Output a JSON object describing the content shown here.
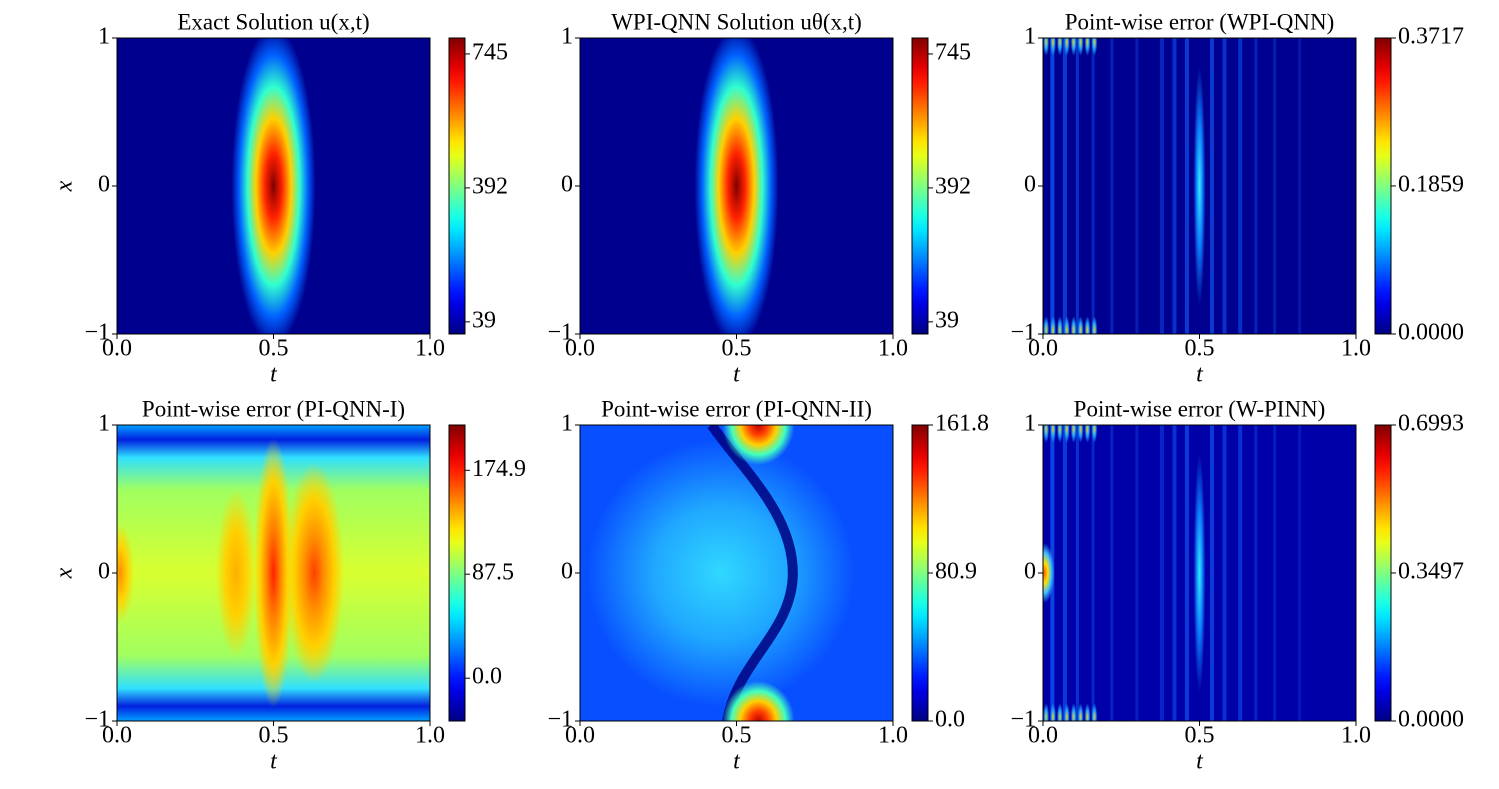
{
  "chart_data": [
    {
      "type": "heatmap",
      "title": "Exact Solution u(x,t)",
      "xlabel": "t",
      "ylabel": "x",
      "xlim": [
        0,
        1
      ],
      "xticks": [
        {
          "value": 0,
          "label": "0.0"
        },
        0.5,
        {
          "value": 1,
          "label": "1.0"
        }
      ],
      "ylim": [
        -1,
        1
      ],
      "yticks": [
        {
          "value": -1,
          "label": "−1"
        },
        0,
        1
      ],
      "colormap": "jet",
      "clim": [
        7,
        787
      ],
      "cticks": [
        39,
        392,
        745
      ]
    },
    {
      "type": "heatmap",
      "title": "WPI-QNN Solution uθ(x,t)",
      "xlabel": "t",
      "xlim": [
        0,
        1
      ],
      "xticks": [
        {
          "value": 0,
          "label": "0.0"
        },
        0.5,
        {
          "value": 1,
          "label": "1.0"
        }
      ],
      "ylim": [
        -1,
        1
      ],
      "yticks": [
        {
          "value": -1,
          "label": "−1"
        },
        0,
        1
      ],
      "colormap": "jet",
      "clim": [
        7,
        787
      ],
      "cticks": [
        39,
        392,
        745
      ]
    },
    {
      "type": "heatmap",
      "title": "Point-wise error (WPI-QNN)",
      "xlabel": "t",
      "xlim": [
        0,
        1
      ],
      "xticks": [
        {
          "value": 0,
          "label": "0.0"
        },
        0.5,
        {
          "value": 1,
          "label": "1.0"
        }
      ],
      "ylim": [
        -1,
        1
      ],
      "yticks": [
        {
          "value": -1,
          "label": "−1"
        },
        0,
        1
      ],
      "colormap": "jet",
      "clim": [
        0,
        0.3717
      ],
      "cticks": [
        {
          "value": 0,
          "label": "0.0000"
        },
        0.1859,
        0.3717
      ]
    },
    {
      "type": "heatmap",
      "title": "Point-wise error (PI-QNN-I)",
      "xlabel": "t",
      "ylabel": "x",
      "xlim": [
        0,
        1
      ],
      "xticks": [
        {
          "value": 0,
          "label": "0.0"
        },
        0.5,
        {
          "value": 1,
          "label": "1.0"
        }
      ],
      "ylim": [
        -1,
        1
      ],
      "yticks": [
        {
          "value": -1,
          "label": "−1"
        },
        0,
        1
      ],
      "colormap": "jet",
      "clim": [
        -36,
        213
      ],
      "cticks": [
        {
          "value": 0,
          "label": "0.0"
        },
        87.5,
        174.9
      ]
    },
    {
      "type": "heatmap",
      "title": "Point-wise error (PI-QNN-II)",
      "xlabel": "t",
      "xlim": [
        0,
        1
      ],
      "xticks": [
        {
          "value": 0,
          "label": "0.0"
        },
        0.5,
        {
          "value": 1,
          "label": "1.0"
        }
      ],
      "ylim": [
        -1,
        1
      ],
      "yticks": [
        {
          "value": -1,
          "label": "−1"
        },
        0,
        1
      ],
      "colormap": "jet",
      "clim": [
        0,
        161.8
      ],
      "cticks": [
        {
          "value": 0,
          "label": "0.0"
        },
        80.9,
        161.8
      ]
    },
    {
      "type": "heatmap",
      "title": "Point-wise error (W-PINN)",
      "xlabel": "t",
      "xlim": [
        0,
        1
      ],
      "xticks": [
        {
          "value": 0,
          "label": "0.0"
        },
        0.5,
        {
          "value": 1,
          "label": "1.0"
        }
      ],
      "ylim": [
        -1,
        1
      ],
      "yticks": [
        {
          "value": -1,
          "label": "−1"
        },
        0,
        1
      ],
      "colormap": "jet",
      "clim": [
        0,
        0.6993
      ],
      "cticks": [
        {
          "value": 0,
          "label": "0.0000"
        },
        0.3497,
        0.6993
      ]
    }
  ]
}
